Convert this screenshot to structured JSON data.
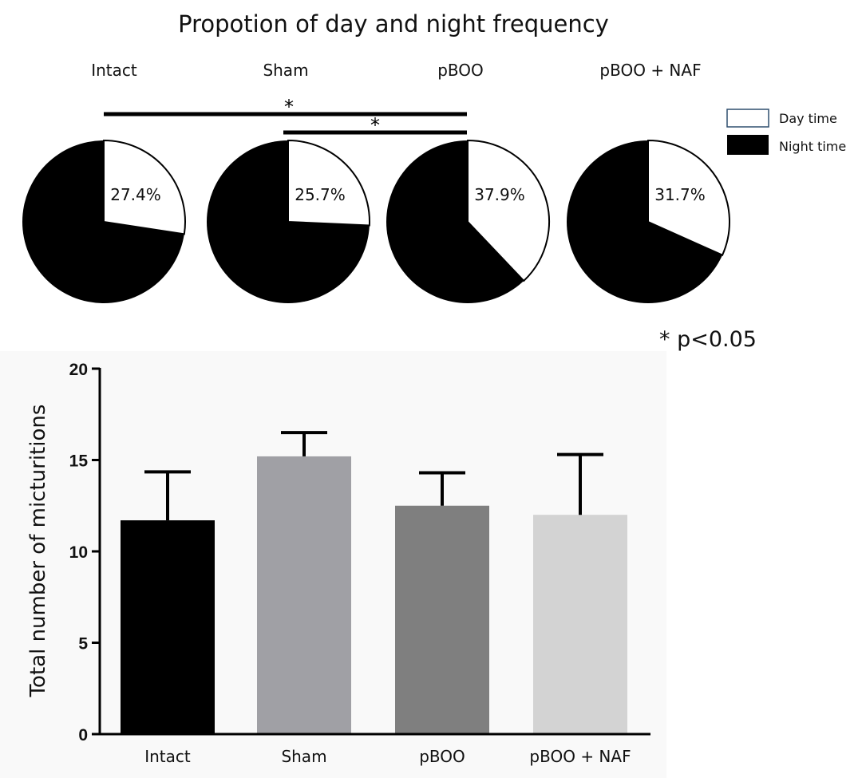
{
  "pie_title": "Propotion of day and night frequency",
  "pie_groups": [
    {
      "label": "Intact",
      "day_percent_label": "27.4%"
    },
    {
      "label": "Sham",
      "day_percent_label": "25.7%"
    },
    {
      "label": "pBOO",
      "day_percent_label": "37.9%"
    },
    {
      "label": "pBOO + NAF",
      "day_percent_label": "31.7%"
    }
  ],
  "significance": {
    "star": "*",
    "brackets": [
      {
        "from": "Intact",
        "to": "pBOO"
      },
      {
        "from": "Sham",
        "to": "pBOO"
      }
    ],
    "note": "* p<0.05"
  },
  "legend": {
    "day_label": "Day time",
    "night_label": "Night time",
    "day_color": "#ffffff",
    "day_border_color": "#2f4f6f",
    "night_color": "#000000"
  },
  "chart_data": [
    {
      "type": "pie",
      "title": "Propotion of day and night frequency",
      "charts": [
        {
          "name": "Intact",
          "slices": [
            {
              "label": "Day time",
              "value": 27.4
            },
            {
              "label": "Night time",
              "value": 72.6
            }
          ]
        },
        {
          "name": "Sham",
          "slices": [
            {
              "label": "Day time",
              "value": 25.7
            },
            {
              "label": "Night time",
              "value": 74.3
            }
          ]
        },
        {
          "name": "pBOO",
          "slices": [
            {
              "label": "Day time",
              "value": 37.9
            },
            {
              "label": "Night time",
              "value": 62.1
            }
          ]
        },
        {
          "name": "pBOO + NAF",
          "slices": [
            {
              "label": "Day time",
              "value": 31.7
            },
            {
              "label": "Night time",
              "value": 68.3
            }
          ]
        }
      ],
      "colors": {
        "Day time": "#ffffff",
        "Night time": "#000000"
      },
      "legend_position": "top-right"
    },
    {
      "type": "bar",
      "categories": [
        "Intact",
        "Sham",
        "pBOO",
        "pBOO + NAF"
      ],
      "values": [
        11.7,
        15.2,
        12.5,
        12.0
      ],
      "error_upper": [
        14.35,
        16.5,
        14.3,
        15.3
      ],
      "colors": [
        "#000000",
        "#a0a0a5",
        "#7f7f7f",
        "#d3d3d3"
      ],
      "ylabel": "Total number of micturitions",
      "xlabel": "",
      "ylim": [
        0,
        20
      ],
      "yticks": [
        0,
        5,
        10,
        15,
        20
      ],
      "grid": false
    }
  ]
}
